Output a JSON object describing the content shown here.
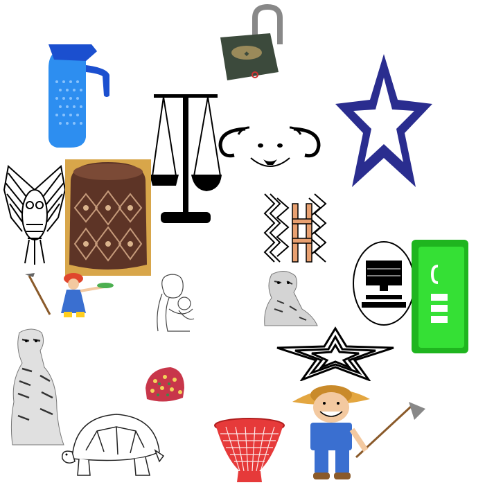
{
  "canvas": {
    "background": "#ffffff",
    "items": [
      {
        "name": "water-jug"
      },
      {
        "name": "open-padlock"
      },
      {
        "name": "blue-star"
      },
      {
        "name": "balance-scale"
      },
      {
        "name": "dog-face"
      },
      {
        "name": "owl"
      },
      {
        "name": "patterned-stool"
      },
      {
        "name": "ladder-pattern"
      },
      {
        "name": "computer-icon"
      },
      {
        "name": "green-phone"
      },
      {
        "name": "gardener-girl"
      },
      {
        "name": "mother-child-sketch"
      },
      {
        "name": "sitting-tiger-small"
      },
      {
        "name": "standing-tiger"
      },
      {
        "name": "outline-star"
      },
      {
        "name": "patterned-cap"
      },
      {
        "name": "tortoise"
      },
      {
        "name": "red-basket"
      },
      {
        "name": "farmer-boy"
      }
    ]
  },
  "colors": {
    "jug": "#1e7be0",
    "star": "#2a2d8f",
    "phone": "#27c22a",
    "stool": "#6b3e2e",
    "basket": "#d62b2b",
    "overalls": "#3a6fd0"
  }
}
